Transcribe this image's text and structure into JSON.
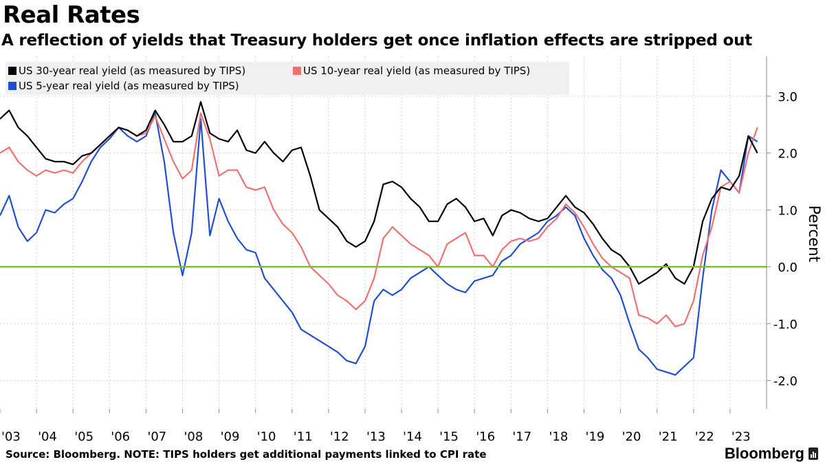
{
  "title": "Real Rates",
  "subtitle": "A reflection of yields that Treasury holders get once inflation effects are stripped out",
  "footer": "Source: Bloomberg. NOTE: TIPS holders get additional payments linked to CPI rate",
  "brand": "Bloomberg",
  "chart_data": {
    "type": "line",
    "title": "Real Rates",
    "ylabel": "Percent",
    "xlabel": "",
    "xlim": [
      2003.0,
      2024.0
    ],
    "ylim": [
      -2.5,
      3.7
    ],
    "grid": true,
    "legend_position": "top-left",
    "x_ticks": [
      2003,
      2004,
      2005,
      2006,
      2007,
      2008,
      2009,
      2010,
      2011,
      2012,
      2013,
      2014,
      2015,
      2016,
      2017,
      2018,
      2019,
      2020,
      2021,
      2022,
      2023
    ],
    "x_tick_labels": [
      "'03",
      "'04",
      "'05",
      "'06",
      "'07",
      "'08",
      "'09",
      "'10",
      "'11",
      "'12",
      "'13",
      "'14",
      "'15",
      "'16",
      "'17",
      "'18",
      "'19",
      "'20",
      "'21",
      "'22",
      "'23"
    ],
    "y_ticks": [
      3.0,
      2.0,
      1.0,
      0.0,
      -1.0,
      -2.0
    ],
    "y_tick_labels": [
      "3.0",
      "2.0",
      "1.0",
      "0.0",
      "-1.0",
      "-2.0"
    ],
    "reference_line": {
      "y": 0.0,
      "color": "#7cc21c"
    },
    "x": [
      2003.0,
      2003.25,
      2003.5,
      2003.75,
      2004.0,
      2004.25,
      2004.5,
      2004.75,
      2005.0,
      2005.25,
      2005.5,
      2005.75,
      2006.0,
      2006.25,
      2006.5,
      2006.75,
      2007.0,
      2007.25,
      2007.5,
      2007.75,
      2008.0,
      2008.25,
      2008.5,
      2008.75,
      2009.0,
      2009.25,
      2009.5,
      2009.75,
      2010.0,
      2010.25,
      2010.5,
      2010.75,
      2011.0,
      2011.25,
      2011.5,
      2011.75,
      2012.0,
      2012.25,
      2012.5,
      2012.75,
      2013.0,
      2013.25,
      2013.5,
      2013.75,
      2014.0,
      2014.25,
      2014.5,
      2014.75,
      2015.0,
      2015.25,
      2015.5,
      2015.75,
      2016.0,
      2016.25,
      2016.5,
      2016.75,
      2017.0,
      2017.25,
      2017.5,
      2017.75,
      2018.0,
      2018.25,
      2018.5,
      2018.75,
      2019.0,
      2019.25,
      2019.5,
      2019.75,
      2020.0,
      2020.25,
      2020.5,
      2020.75,
      2021.0,
      2021.25,
      2021.5,
      2021.75,
      2022.0,
      2022.25,
      2022.5,
      2022.75,
      2023.0,
      2023.25,
      2023.5,
      2023.75
    ],
    "series": [
      {
        "name": "US 30-year real yield (as measured by TIPS)",
        "color": "#000000",
        "values": [
          2.6,
          2.75,
          2.45,
          2.3,
          2.1,
          1.9,
          1.85,
          1.85,
          1.8,
          1.95,
          2.0,
          2.15,
          2.3,
          2.45,
          2.4,
          2.3,
          2.4,
          2.75,
          2.5,
          2.2,
          2.2,
          2.3,
          2.9,
          2.35,
          2.25,
          2.2,
          2.4,
          2.05,
          2.0,
          2.2,
          2.0,
          1.85,
          2.05,
          2.1,
          1.6,
          1.0,
          0.85,
          0.7,
          0.45,
          0.35,
          0.45,
          0.8,
          1.45,
          1.5,
          1.4,
          1.2,
          1.05,
          0.8,
          0.8,
          1.1,
          1.2,
          1.05,
          0.8,
          0.85,
          0.55,
          0.9,
          1.0,
          0.95,
          0.85,
          0.8,
          0.85,
          1.05,
          1.25,
          1.05,
          0.95,
          0.75,
          0.5,
          0.3,
          0.2,
          0.0,
          -0.3,
          -0.2,
          -0.1,
          0.05,
          -0.2,
          -0.3,
          0.0,
          0.8,
          1.2,
          1.4,
          1.35,
          1.6,
          2.3,
          2.0
        ]
      },
      {
        "name": "US 10-year real yield (as measured by TIPS)",
        "color": "#f07070",
        "values": [
          2.0,
          2.1,
          1.85,
          1.7,
          1.6,
          1.7,
          1.65,
          1.7,
          1.65,
          1.85,
          2.0,
          2.15,
          2.3,
          2.45,
          2.4,
          2.3,
          2.35,
          2.65,
          2.25,
          1.85,
          1.55,
          1.7,
          2.7,
          2.25,
          1.6,
          1.7,
          1.7,
          1.4,
          1.35,
          1.4,
          1.0,
          0.75,
          0.6,
          0.35,
          0.0,
          -0.15,
          -0.3,
          -0.5,
          -0.6,
          -0.75,
          -0.6,
          -0.2,
          0.5,
          0.7,
          0.55,
          0.4,
          0.3,
          0.2,
          0.0,
          0.4,
          0.5,
          0.6,
          0.2,
          0.2,
          0.0,
          0.3,
          0.45,
          0.5,
          0.45,
          0.5,
          0.7,
          0.85,
          1.1,
          0.95,
          0.7,
          0.4,
          0.15,
          0.0,
          -0.1,
          -0.2,
          -0.85,
          -0.9,
          -1.0,
          -0.85,
          -1.05,
          -1.0,
          -0.6,
          0.2,
          0.7,
          1.4,
          1.5,
          1.3,
          2.0,
          2.45
        ]
      },
      {
        "name": "US 5-year real yield (as measured by TIPS)",
        "color": "#1f4fd1",
        "values": [
          0.9,
          1.25,
          0.7,
          0.45,
          0.6,
          1.0,
          0.95,
          1.1,
          1.2,
          1.5,
          1.85,
          2.1,
          2.25,
          2.45,
          2.3,
          2.2,
          2.3,
          2.7,
          1.85,
          0.6,
          -0.15,
          0.6,
          2.6,
          0.55,
          1.2,
          0.8,
          0.5,
          0.3,
          0.25,
          -0.2,
          -0.4,
          -0.6,
          -0.8,
          -1.1,
          -1.2,
          -1.3,
          -1.4,
          -1.5,
          -1.65,
          -1.7,
          -1.4,
          -0.6,
          -0.4,
          -0.5,
          -0.4,
          -0.2,
          -0.1,
          0.0,
          -0.15,
          -0.3,
          -0.4,
          -0.45,
          -0.25,
          -0.2,
          -0.15,
          0.1,
          0.2,
          0.4,
          0.5,
          0.6,
          0.8,
          0.9,
          1.05,
          0.9,
          0.5,
          0.2,
          -0.05,
          -0.2,
          -0.5,
          -1.0,
          -1.45,
          -1.6,
          -1.8,
          -1.85,
          -1.9,
          -1.75,
          -1.6,
          -0.2,
          1.0,
          1.7,
          1.5,
          1.3,
          2.3,
          2.2
        ]
      }
    ]
  }
}
